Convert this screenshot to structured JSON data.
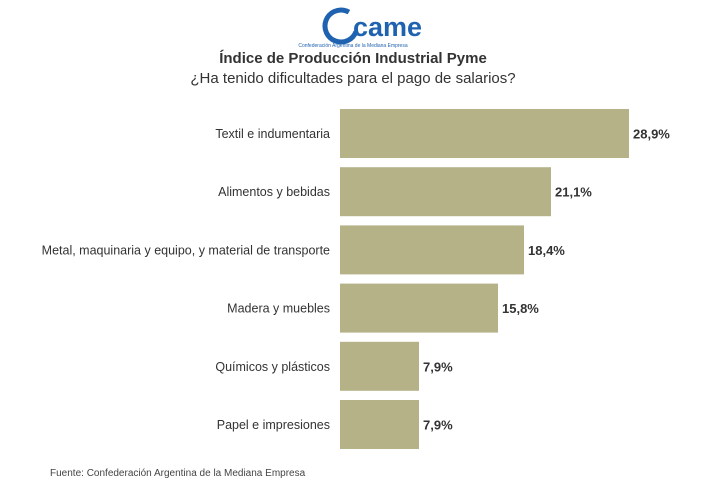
{
  "logo": {
    "wordmark": "came",
    "tagline": "Confederación Argentina de la Mediana Empresa",
    "color": "#1f62b0"
  },
  "chart_data": {
    "type": "bar",
    "orientation": "horizontal",
    "title": "Índice de Producción Industrial Pyme",
    "subtitle": "¿Ha tenido dificultades para el pago de salarios?",
    "categories": [
      "Textil e indumentaria",
      "Alimentos y bebidas",
      "Metal, maquinaria y equipo, y material de transporte",
      "Madera y muebles",
      "Químicos y plásticos",
      "Papel e impresiones"
    ],
    "values": [
      28.9,
      21.1,
      18.4,
      15.8,
      7.9,
      7.9
    ],
    "value_labels": [
      "28,9%",
      "21,1%",
      "18,4%",
      "15,8%",
      "7,9%",
      "7,9%"
    ],
    "bar_color": "#b5b288",
    "xlim": [
      0,
      30
    ],
    "grid": false,
    "legend": "none"
  },
  "source": "Fuente: Confederación Argentina de la Mediana Empresa"
}
